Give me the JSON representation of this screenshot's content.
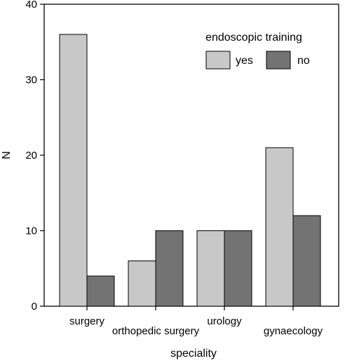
{
  "chart_data": {
    "type": "bar",
    "title": "",
    "xlabel": "speciality",
    "ylabel": "N",
    "categories": [
      "surgery",
      "orthopedic surgery",
      "urology",
      "gynaecology"
    ],
    "series": [
      {
        "name": "yes",
        "values": [
          36,
          6,
          10,
          21
        ],
        "color": "#c8c8c8"
      },
      {
        "name": "no",
        "values": [
          4,
          10,
          10,
          12
        ],
        "color": "#737373"
      }
    ],
    "ylim": [
      0,
      40
    ],
    "yticks": [
      "0",
      "10",
      "20",
      "30",
      "40"
    ],
    "grid": false,
    "legend": {
      "title": "endoscopic training",
      "placement": "top-right"
    }
  }
}
